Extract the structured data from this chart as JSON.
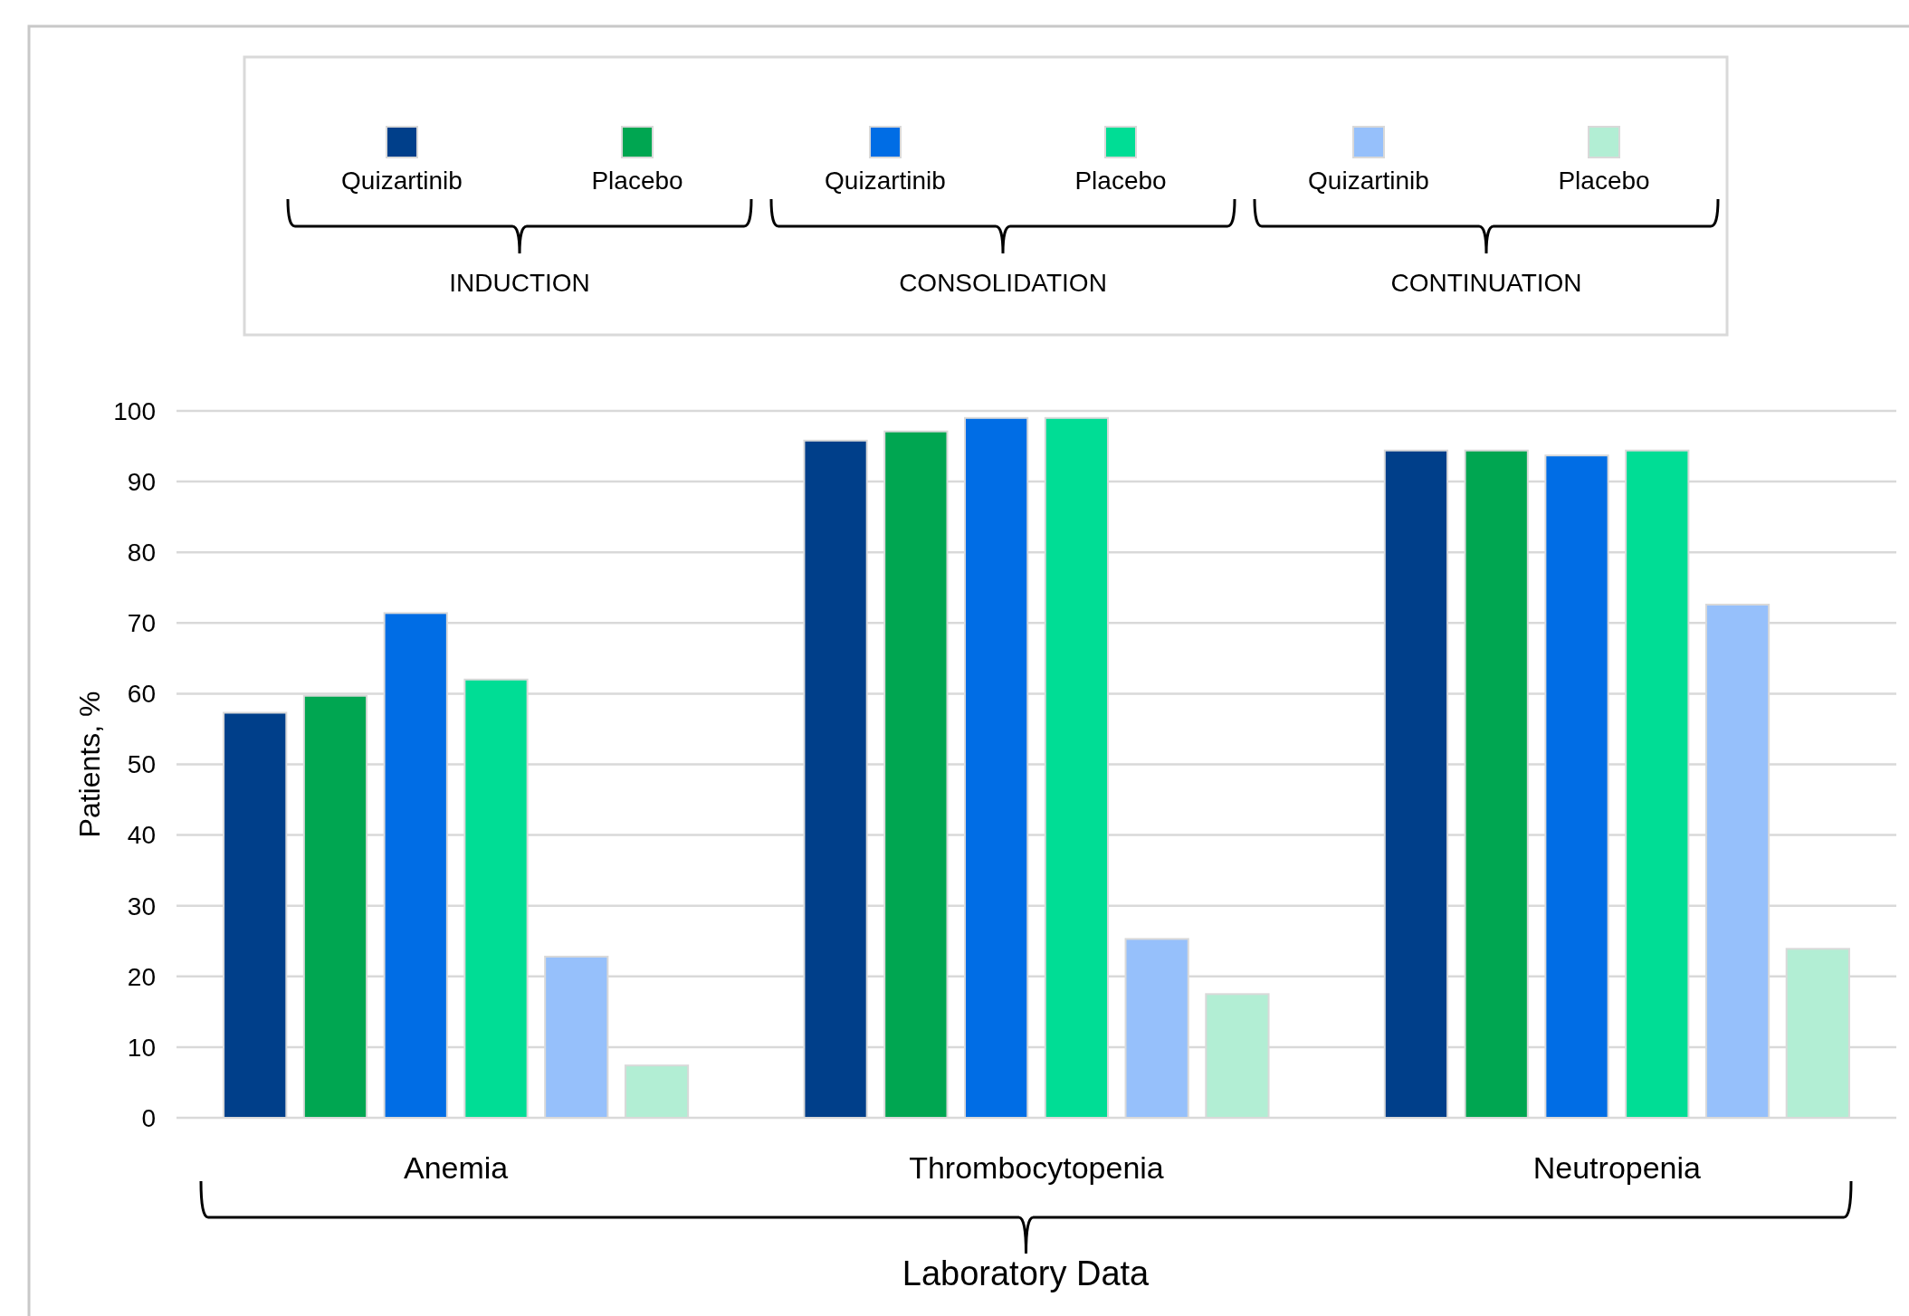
{
  "chart_data": {
    "type": "bar",
    "ylabel": "Patients, %",
    "xlabel": "Laboratory Data",
    "categories": [
      "Anemia",
      "Thrombocytopenia",
      "Neutropenia"
    ],
    "series": [
      {
        "name": "Quizartinib",
        "color": "#003f8a",
        "values": [
          57.3,
          95.8,
          94.4
        ]
      },
      {
        "name": "Placebo",
        "color": "#00a651",
        "values": [
          59.7,
          97.1,
          94.4
        ]
      },
      {
        "name": "Quizartinib",
        "color": "#006de5",
        "values": [
          71.4,
          99.0,
          93.7
        ]
      },
      {
        "name": "Placebo",
        "color": "#00dd95",
        "values": [
          62.0,
          99.0,
          94.4
        ]
      },
      {
        "name": "Quizartinib",
        "color": "#96c0fb",
        "values": [
          22.8,
          25.3,
          72.6
        ]
      },
      {
        "name": "Placebo",
        "color": "#b2eed4",
        "values": [
          7.4,
          17.5,
          23.9
        ]
      }
    ],
    "annotations": [
      "INDUCTION",
      "CONSOLIDATION",
      "CONTINUATION"
    ],
    "ylim": [
      0,
      100
    ],
    "yticks": [
      0,
      10,
      20,
      30,
      40,
      50,
      60,
      70,
      80,
      90,
      100
    ],
    "grid": "y",
    "legend": "top"
  }
}
